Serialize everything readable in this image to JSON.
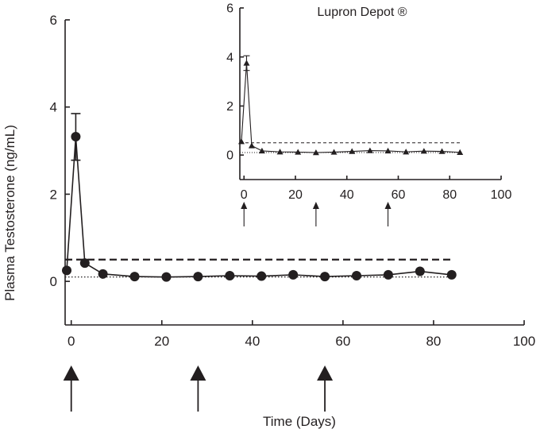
{
  "chart_data": [
    {
      "type": "line",
      "title": "",
      "xlabel": "Time (Days)",
      "ylabel": "Plasma Testosterone (ng/mL)",
      "xlim": [
        -1,
        100
      ],
      "ylim": [
        -1,
        6
      ],
      "xticks": [
        0,
        20,
        40,
        60,
        80,
        100
      ],
      "yticks": [
        0,
        2,
        4,
        6
      ],
      "grid": false,
      "legend": "none",
      "series": [
        {
          "marker": "circle",
          "color": "#231f20",
          "x": [
            -1,
            1,
            3,
            7,
            14,
            21,
            28,
            35,
            42,
            49,
            56,
            63,
            70,
            77,
            84
          ],
          "y": [
            0.25,
            3.32,
            0.42,
            0.17,
            0.11,
            0.1,
            0.11,
            0.13,
            0.12,
            0.15,
            0.11,
            0.13,
            0.15,
            0.23,
            0.15
          ],
          "error_bar": {
            "x": 1,
            "upper": 3.85,
            "lower": 2.78
          }
        }
      ],
      "reference_lines": [
        {
          "y": 0.5,
          "style": "dashed"
        },
        {
          "y": 0.1,
          "style": "dotted"
        }
      ],
      "dosing_days": [
        0,
        28,
        56
      ]
    },
    {
      "type": "line",
      "title": "Lupron  Depot ®",
      "xlabel": "",
      "ylabel": "",
      "xlim": [
        -1,
        100
      ],
      "ylim": [
        -1,
        6
      ],
      "xticks": [
        0,
        20,
        40,
        60,
        80,
        100
      ],
      "yticks": [
        0,
        2,
        4,
        6
      ],
      "grid": false,
      "legend": "none",
      "series": [
        {
          "marker": "triangle",
          "color": "#231f20",
          "x": [
            -1,
            1,
            3,
            7,
            14,
            21,
            28,
            35,
            42,
            49,
            56,
            63,
            70,
            77,
            84
          ],
          "y": [
            0.55,
            3.75,
            0.38,
            0.17,
            0.13,
            0.12,
            0.1,
            0.12,
            0.15,
            0.18,
            0.17,
            0.13,
            0.16,
            0.15,
            0.11
          ],
          "error_bar": {
            "x": 1,
            "upper": 4.05,
            "lower": 3.45
          }
        }
      ],
      "reference_lines": [
        {
          "y": 0.5,
          "style": "dashed"
        },
        {
          "y": 0.1,
          "style": "dotted"
        }
      ],
      "dosing_days": [
        0,
        28,
        56
      ]
    }
  ]
}
